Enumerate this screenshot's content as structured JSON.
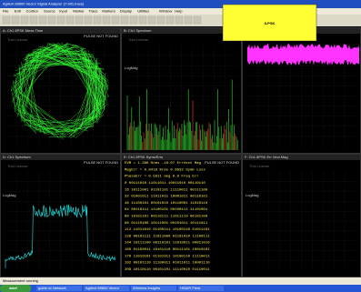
{
  "window": {
    "title": "Agilent 89600 Vector Signal Analyzer (7-bit1.trace)",
    "menu": [
      "File",
      "Edit",
      "Control",
      "Source",
      "Input",
      "Marker",
      "Trace",
      "Markers",
      "Display",
      "Utilities",
      "Window",
      "Help"
    ]
  },
  "badge": "8-PSK",
  "panels": [
    {
      "label": "A: Ch1 8PSK Meas Time",
      "status": "PULSE NOT FOUND",
      "watermark": "Trial License"
    },
    {
      "label": "B: Ch1 Spectrum",
      "status": "",
      "watermark": "Trial License"
    },
    {
      "label": "C: Ch1 Search Time",
      "status": "",
      "watermark": "Trial License"
    },
    {
      "label": "D: Ch1 Spectrum",
      "status": "PULSE NOT FOUND",
      "watermark": "Trial License"
    },
    {
      "label": "E: Ch1 8PSK Syms/Errs",
      "status": "PULSE NOT FOUND",
      "watermark": ""
    },
    {
      "label": "F: Ch1 8PSK Err Vect Mag",
      "status": "",
      "watermark": "Trial License"
    }
  ],
  "axis_labels": {
    "left_top": "LogMag",
    "left_bottom": "LogMag",
    "right_bottom": "LogMag"
  },
  "table": {
    "rows": [
      "EVM = 1.386 %rms  -18.07  ErrVect Mag",
      "MagErr = 0.8418 %rms  0.9632  Symb Loss",
      "PhaseErr = 0.5811 deg  0.0   Freq Err",
      "0 00111010 11011011 10011010 00110110",
      "16 10111001 01101101 11110011 00111100",
      "32 01001011 11011011 10001011 00110101",
      "48 11100101 00101010 10110001 11010110",
      "64 00110111 11100101 00100111 11101001",
      "80 10101101 00110111 11011110 00101100",
      "96 01110100 10111001 00101011 10111011",
      "112 11011010 01100111 10100110 01011101",
      "128 00101111 11011000 01101010 11100111",
      "144 10111100 00110101 11010011 00011010",
      "160 01100011 10101110 00111101 10010101",
      "176 11010101 01101011 10100110 11110011",
      "192 00101110 11100011 01011011 10001110",
      "208 10110110 00101101 11110010 01110011"
    ]
  },
  "status_bar": "Measurement running",
  "taskbar": {
    "start": "start",
    "items": [
      "guide.xc Network",
      "Agilent 89600 Vector",
      "Wireless Insights",
      "HS&IR Ftest"
    ]
  }
}
